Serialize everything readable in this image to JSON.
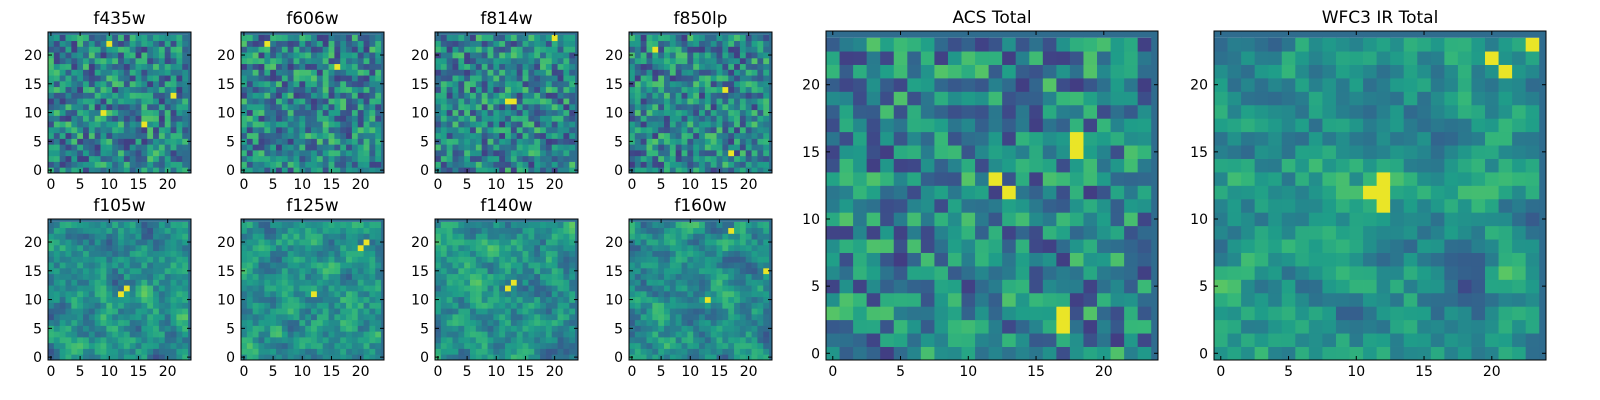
{
  "chart_data": {
    "type": "heatmap",
    "colormap": "viridis",
    "panels": [
      {
        "id": "f435w",
        "title": "f435w",
        "grid_size": [
          24,
          24
        ],
        "xticks": [
          0,
          5,
          10,
          15,
          20
        ],
        "yticks": [
          0,
          5,
          10,
          15,
          20
        ],
        "bright_spots": [
          [
            9,
            10
          ],
          [
            16,
            8
          ],
          [
            21,
            13
          ],
          [
            10,
            22
          ]
        ]
      },
      {
        "id": "f606w",
        "title": "f606w",
        "grid_size": [
          24,
          24
        ],
        "xticks": [
          0,
          5,
          10,
          15,
          20
        ],
        "yticks": [
          0,
          5,
          10,
          15,
          20
        ],
        "bright_spots": [
          [
            16,
            18
          ],
          [
            4,
            22
          ]
        ]
      },
      {
        "id": "f814w",
        "title": "f814w",
        "grid_size": [
          24,
          24
        ],
        "xticks": [
          0,
          5,
          10,
          15,
          20
        ],
        "yticks": [
          0,
          5,
          10,
          15,
          20
        ],
        "bright_spots": [
          [
            12,
            12
          ],
          [
            13,
            12
          ],
          [
            20,
            23
          ]
        ]
      },
      {
        "id": "f850lp",
        "title": "f850lp",
        "grid_size": [
          24,
          24
        ],
        "xticks": [
          0,
          5,
          10,
          15,
          20
        ],
        "yticks": [
          0,
          5,
          10,
          15,
          20
        ],
        "bright_spots": [
          [
            17,
            3
          ],
          [
            4,
            21
          ],
          [
            16,
            14
          ]
        ]
      },
      {
        "id": "f105w",
        "title": "f105w",
        "grid_size": [
          24,
          24
        ],
        "xticks": [
          0,
          5,
          10,
          15,
          20
        ],
        "yticks": [
          0,
          5,
          10,
          15,
          20
        ],
        "bright_spots": [
          [
            12,
            11
          ],
          [
            13,
            12
          ]
        ]
      },
      {
        "id": "f125w",
        "title": "f125w",
        "grid_size": [
          24,
          24
        ],
        "xticks": [
          0,
          5,
          10,
          15,
          20
        ],
        "yticks": [
          0,
          5,
          10,
          15,
          20
        ],
        "bright_spots": [
          [
            20,
            19
          ],
          [
            21,
            20
          ],
          [
            12,
            11
          ]
        ]
      },
      {
        "id": "f140w",
        "title": "f140w",
        "grid_size": [
          24,
          24
        ],
        "xticks": [
          0,
          5,
          10,
          15,
          20
        ],
        "yticks": [
          0,
          5,
          10,
          15,
          20
        ],
        "bright_spots": [
          [
            12,
            12
          ],
          [
            13,
            13
          ]
        ]
      },
      {
        "id": "f160w",
        "title": "f160w",
        "grid_size": [
          24,
          24
        ],
        "xticks": [
          0,
          5,
          10,
          15,
          20
        ],
        "yticks": [
          0,
          5,
          10,
          15,
          20
        ],
        "bright_spots": [
          [
            13,
            10
          ],
          [
            23,
            15
          ],
          [
            17,
            22
          ]
        ]
      },
      {
        "id": "acs_total",
        "title": "ACS Total",
        "grid_size": [
          24,
          24
        ],
        "xticks": [
          0,
          5,
          10,
          15,
          20
        ],
        "yticks": [
          0,
          5,
          10,
          15,
          20
        ],
        "bright_spots": [
          [
            12,
            13
          ],
          [
            13,
            12
          ],
          [
            18,
            15
          ],
          [
            18,
            16
          ],
          [
            17,
            3
          ],
          [
            17,
            2
          ]
        ]
      },
      {
        "id": "wfc3_ir_total",
        "title": "WFC3 IR Total",
        "grid_size": [
          24,
          24
        ],
        "xticks": [
          0,
          5,
          10,
          15,
          20
        ],
        "yticks": [
          0,
          5,
          10,
          15,
          20
        ],
        "bright_spots": [
          [
            12,
            11
          ],
          [
            12,
            12
          ],
          [
            12,
            13
          ],
          [
            11,
            12
          ],
          [
            21,
            21
          ],
          [
            20,
            22
          ],
          [
            23,
            23
          ]
        ]
      }
    ]
  }
}
